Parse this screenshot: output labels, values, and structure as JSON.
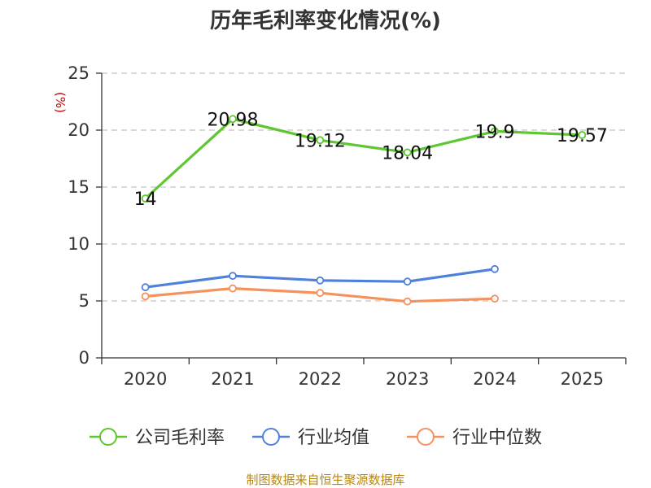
{
  "chart_data": {
    "type": "line",
    "title": "历年毛利率变化情况(%)",
    "unit_label": "(%)",
    "categories": [
      "2020",
      "2021",
      "2022",
      "2023",
      "2024",
      "2025"
    ],
    "ylim": [
      0,
      25
    ],
    "yticks": [
      0,
      5,
      10,
      15,
      20,
      25
    ],
    "grid": true,
    "legend_position": "bottom",
    "series": [
      {
        "name": "公司毛利率",
        "color": "#5cc72e",
        "values": [
          14,
          20.98,
          19.12,
          18.04,
          19.9,
          19.57
        ],
        "labels": [
          "14",
          "20.98",
          "19.12",
          "18.04",
          "19.9",
          "19.57"
        ]
      },
      {
        "name": "行业均值",
        "color": "#4f81dc",
        "values": [
          6.2,
          7.2,
          6.8,
          6.7,
          7.8,
          null
        ]
      },
      {
        "name": "行业中位数",
        "color": "#f4925e",
        "values": [
          5.4,
          6.1,
          5.7,
          4.95,
          5.2,
          null
        ]
      }
    ],
    "source": "制图数据来自恒生聚源数据库"
  }
}
